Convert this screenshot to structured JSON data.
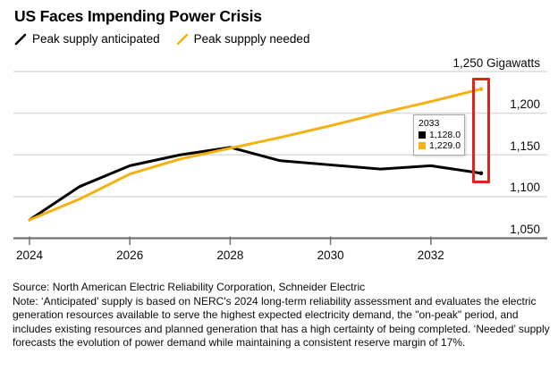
{
  "title": "US Faces Impending Power Crisis",
  "legend": [
    {
      "label": "Peak supply anticipated",
      "color": "#000000"
    },
    {
      "label": "Peak suppply needed",
      "color": "#f5b112"
    }
  ],
  "chart_data": {
    "type": "line",
    "x": [
      2024,
      2025,
      2026,
      2027,
      2028,
      2029,
      2030,
      2031,
      2032,
      2033
    ],
    "series": [
      {
        "name": "Peak supply anticipated",
        "color": "#000000",
        "values": [
          1072,
          1112,
          1137,
          1150,
          1159,
          1143,
          1138,
          1133,
          1137,
          1128
        ]
      },
      {
        "name": "Peak suppply needed",
        "color": "#f5b112",
        "values": [
          1072,
          1097,
          1127,
          1145,
          1158,
          1171,
          1185,
          1200,
          1214,
          1229
        ]
      }
    ],
    "ylim": [
      1050,
      1250
    ],
    "yticks": [
      {
        "value": 1050,
        "label": "1,050"
      },
      {
        "value": 1100,
        "label": "1,100"
      },
      {
        "value": 1150,
        "label": "1,150"
      },
      {
        "value": 1200,
        "label": "1,200"
      },
      {
        "value": 1250,
        "label": "1,250 Gigawatts"
      }
    ],
    "xticks": [
      {
        "value": 2024,
        "label": "2024"
      },
      {
        "value": 2026,
        "label": "2026"
      },
      {
        "value": 2028,
        "label": "2028"
      },
      {
        "value": 2030,
        "label": "2030"
      },
      {
        "value": 2032,
        "label": "2032"
      }
    ],
    "grid": "horizontal",
    "legend_position": "top-left",
    "ylabel": "Gigawatts",
    "highlight_box": {
      "x_year": 2033,
      "color": "#e2231b"
    },
    "colors": {
      "grid": "#dbdbdb",
      "axis": "#707070"
    }
  },
  "tooltip": {
    "title": "2033",
    "rows": [
      {
        "color": "#000000",
        "value": "1,128.0"
      },
      {
        "color": "#f5b112",
        "value": "1,229.0"
      }
    ]
  },
  "footer": {
    "source": "Source: North American Electric Reliability Corporation, Schneider Electric",
    "note": "Note: ‘Anticipated’ supply is based on NERC's 2024 long-term reliability assessment and evaluates the electric generation resources available to serve the highest expected electricity demand, the \"on-peak\" period, and includes existing resources and planned generation that has a high certainty of being completed. ‘Needed’ supply forecasts the evolution of power demand while maintaining a consistent reserve margin of 17%."
  }
}
